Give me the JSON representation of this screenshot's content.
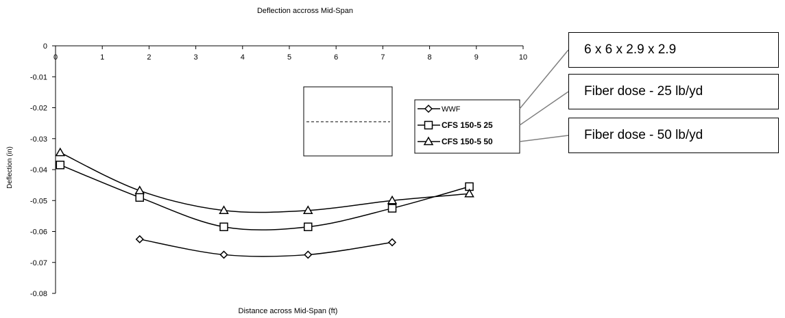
{
  "chart_data": {
    "type": "line",
    "title": "Deflection accross Mid-Span",
    "xlabel": "Distance across Mid-Span (ft)",
    "ylabel": "Deflection (in)",
    "xlim": [
      0,
      10
    ],
    "ylim": [
      -0.08,
      0
    ],
    "xticks": [
      0,
      1,
      2,
      3,
      4,
      5,
      6,
      7,
      8,
      9,
      10
    ],
    "yticks": [
      0,
      -0.01,
      -0.02,
      -0.03,
      -0.04,
      -0.05,
      -0.06,
      -0.07,
      -0.08
    ],
    "ytick_labels": [
      "0",
      "-0.01",
      "-0.02",
      "-0.03",
      "-0.04",
      "-0.05",
      "-0.06",
      "-0.07",
      "-0.08"
    ],
    "grid": false,
    "legend_position": "right",
    "series": [
      {
        "name": "WWF",
        "marker": "diamond",
        "x": [
          1.8,
          3.6,
          5.4,
          7.2
        ],
        "y": [
          -0.0625,
          -0.0675,
          -0.0675,
          -0.0635
        ]
      },
      {
        "name": "CFS 150-5 25",
        "marker": "square",
        "x": [
          0.1,
          1.8,
          3.6,
          5.4,
          7.2,
          8.85
        ],
        "y": [
          -0.0385,
          -0.049,
          -0.0585,
          -0.0585,
          -0.0525,
          -0.0455
        ]
      },
      {
        "name": "CFS 150-5 50",
        "marker": "triangle",
        "x": [
          0.1,
          1.8,
          3.6,
          5.4,
          7.2,
          8.85
        ],
        "y": [
          -0.0345,
          -0.0468,
          -0.0532,
          -0.0532,
          -0.05,
          -0.0478
        ]
      }
    ]
  },
  "callouts": [
    {
      "text": "6 x 6 x 2.9 x 2.9"
    },
    {
      "text": "Fiber dose - 25 lb/yd"
    },
    {
      "text": "Fiber dose - 50 lb/yd"
    }
  ]
}
